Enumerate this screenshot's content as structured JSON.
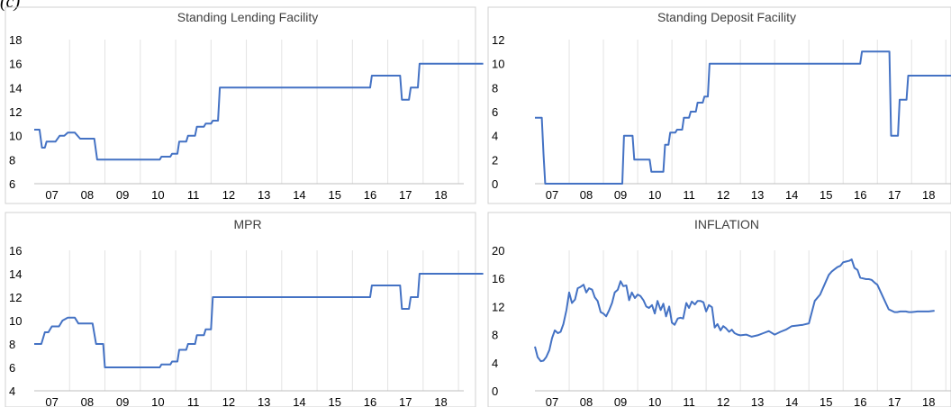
{
  "fragment_text": "(c)",
  "chart_data": [
    {
      "type": "line",
      "title": "Standing Lending Facility",
      "xlabel": "",
      "ylabel": "",
      "ylim": [
        6,
        18
      ],
      "yticks": [
        6,
        8,
        10,
        12,
        14,
        16,
        18
      ],
      "xtick_labels": [
        "07",
        "08",
        "09",
        "10",
        "11",
        "12",
        "13",
        "14",
        "15",
        "16",
        "17",
        "18"
      ],
      "grid": "vertical",
      "color": "#4472c4",
      "series": [
        {
          "x": [
            7.0,
            7.15,
            7.22,
            7.3,
            7.35,
            7.5,
            7.6,
            7.72,
            7.85,
            7.95,
            8.0,
            8.15,
            8.3,
            8.45,
            8.6,
            8.7,
            8.78,
            9.55,
            9.6,
            10.55,
            10.6,
            10.85,
            10.9,
            11.05,
            11.1,
            11.3,
            11.35,
            11.55,
            11.6,
            11.8,
            11.85,
            12.0,
            12.05,
            12.2,
            12.25,
            12.4,
            12.45,
            12.5,
            16.5,
            16.55,
            17.2,
            17.25,
            17.35,
            17.4,
            17.6,
            17.65,
            17.85,
            17.9,
            19.7
          ],
          "y": [
            10.5,
            10.5,
            9.0,
            9.0,
            9.5,
            9.5,
            9.5,
            10.0,
            10.0,
            10.25,
            10.25,
            10.25,
            9.75,
            9.75,
            9.75,
            9.75,
            8.0,
            8.0,
            8.0,
            8.0,
            8.25,
            8.25,
            8.5,
            8.5,
            9.5,
            9.5,
            10.0,
            10.0,
            10.75,
            10.75,
            11.0,
            11.0,
            11.25,
            11.25,
            14.0,
            14.0,
            14.0,
            14.0,
            14.0,
            15.0,
            15.0,
            15.0,
            15.0,
            13.0,
            13.0,
            14.0,
            14.0,
            16.0,
            16.0
          ]
        }
      ]
    },
    {
      "type": "line",
      "title": "Standing Deposit Facility",
      "xlabel": "",
      "ylabel": "",
      "ylim": [
        0,
        12
      ],
      "yticks": [
        0,
        2,
        4,
        6,
        8,
        10,
        12
      ],
      "xtick_labels": [
        "07",
        "08",
        "09",
        "10",
        "11",
        "12",
        "13",
        "14",
        "15",
        "16",
        "17",
        "18"
      ],
      "grid": "vertical",
      "color": "#4472c4",
      "series": [
        {
          "x": [
            7.0,
            7.2,
            7.25,
            7.3,
            9.55,
            9.6,
            9.85,
            9.9,
            10.1,
            10.15,
            10.35,
            10.4,
            10.75,
            10.8,
            10.9,
            10.95,
            11.1,
            11.15,
            11.3,
            11.35,
            11.5,
            11.55,
            11.7,
            11.75,
            11.9,
            11.95,
            12.05,
            12.1,
            12.25,
            12.3,
            12.5,
            16.5,
            16.55,
            17.35,
            17.4,
            17.6,
            17.65,
            17.85,
            17.9,
            18.2,
            18.25,
            19.7
          ],
          "y": [
            5.5,
            5.5,
            2.5,
            0.0,
            0.0,
            4.0,
            4.0,
            2.0,
            2.0,
            2.0,
            2.0,
            1.0,
            1.0,
            3.25,
            3.25,
            4.25,
            4.25,
            4.5,
            4.5,
            5.5,
            5.5,
            6.0,
            6.0,
            6.75,
            6.75,
            7.25,
            7.25,
            10.0,
            10.0,
            10.0,
            10.0,
            10.0,
            11.0,
            11.0,
            4.0,
            4.0,
            7.0,
            7.0,
            9.0,
            9.0,
            9.0,
            9.0
          ]
        }
      ]
    },
    {
      "type": "line",
      "title": "MPR",
      "xlabel": "",
      "ylabel": "",
      "ylim": [
        4,
        16
      ],
      "yticks": [
        4,
        6,
        8,
        10,
        12,
        14,
        16
      ],
      "xtick_labels": [
        "07",
        "08",
        "09",
        "10",
        "11",
        "12",
        "13",
        "14",
        "15",
        "16",
        "17",
        "18"
      ],
      "grid": "vertical",
      "color": "#4472c4",
      "series": [
        {
          "x": [
            7.0,
            7.2,
            7.3,
            7.4,
            7.5,
            7.7,
            7.8,
            7.95,
            8.15,
            8.25,
            8.65,
            8.75,
            8.95,
            9.0,
            10.55,
            10.6,
            10.85,
            10.9,
            11.05,
            11.1,
            11.3,
            11.35,
            11.55,
            11.6,
            11.8,
            11.85,
            12.0,
            12.05,
            12.2,
            12.25,
            12.5,
            16.5,
            16.55,
            17.35,
            17.4,
            17.6,
            17.65,
            17.85,
            17.9,
            19.7
          ],
          "y": [
            8.0,
            8.0,
            9.0,
            9.0,
            9.5,
            9.5,
            10.0,
            10.25,
            10.25,
            9.75,
            9.75,
            8.0,
            8.0,
            6.0,
            6.0,
            6.25,
            6.25,
            6.5,
            6.5,
            7.5,
            7.5,
            8.0,
            8.0,
            8.75,
            8.75,
            9.25,
            9.25,
            12.0,
            12.0,
            12.0,
            12.0,
            12.0,
            13.0,
            13.0,
            11.0,
            11.0,
            12.0,
            12.0,
            14.0,
            14.0
          ]
        }
      ]
    },
    {
      "type": "line",
      "title": "INFLATION",
      "xlabel": "",
      "ylabel": "",
      "ylim": [
        0,
        20
      ],
      "yticks": [
        0,
        4,
        8,
        12,
        16,
        20
      ],
      "xtick_labels": [
        "07",
        "08",
        "09",
        "10",
        "11",
        "12",
        "13",
        "14",
        "15",
        "16",
        "17",
        "18"
      ],
      "grid": "vertical",
      "color": "#4472c4",
      "series": [
        {
          "x": [
            7.0,
            7.08,
            7.17,
            7.25,
            7.33,
            7.42,
            7.5,
            7.58,
            7.67,
            7.75,
            7.83,
            7.92,
            8.0,
            8.08,
            8.17,
            8.25,
            8.33,
            8.42,
            8.5,
            8.58,
            8.67,
            8.75,
            8.83,
            8.92,
            9.0,
            9.08,
            9.17,
            9.25,
            9.33,
            9.42,
            9.5,
            9.58,
            9.67,
            9.75,
            9.83,
            9.92,
            10.0,
            10.08,
            10.17,
            10.25,
            10.33,
            10.42,
            10.5,
            10.58,
            10.67,
            10.75,
            10.83,
            10.92,
            11.0,
            11.08,
            11.17,
            11.25,
            11.33,
            11.42,
            11.5,
            11.58,
            11.67,
            11.75,
            11.83,
            11.92,
            12.0,
            12.08,
            12.17,
            12.25,
            12.33,
            12.42,
            12.5,
            12.58,
            12.67,
            12.75,
            12.83,
            12.92,
            13.0,
            13.17,
            13.33,
            13.5,
            13.67,
            13.83,
            14.0,
            14.17,
            14.33,
            14.5,
            14.67,
            14.83,
            15.0,
            15.17,
            15.33,
            15.5,
            15.58,
            15.67,
            15.75,
            15.83,
            15.92,
            16.0,
            16.08,
            16.17,
            16.25,
            16.33,
            16.42,
            16.5,
            16.58,
            16.67,
            16.75,
            16.83,
            16.92,
            17.0,
            17.17,
            17.33,
            17.5,
            17.58,
            17.67,
            17.75,
            17.83,
            17.92,
            18.0,
            18.17,
            18.33,
            18.5,
            18.67
          ],
          "y": [
            6.3,
            4.8,
            4.2,
            4.3,
            4.8,
            5.8,
            7.5,
            8.6,
            8.2,
            8.4,
            9.5,
            11.5,
            14.0,
            12.5,
            13.0,
            14.6,
            14.8,
            15.1,
            14.0,
            14.6,
            14.4,
            13.3,
            12.8,
            11.2,
            11.0,
            10.6,
            11.5,
            12.5,
            14.0,
            14.4,
            15.6,
            14.9,
            15.0,
            12.9,
            14.0,
            13.2,
            13.7,
            13.5,
            12.9,
            12.0,
            11.8,
            12.2,
            11.0,
            12.8,
            11.5,
            12.4,
            10.6,
            12.0,
            9.7,
            9.4,
            10.3,
            10.4,
            10.3,
            12.5,
            11.8,
            12.7,
            12.3,
            12.8,
            12.8,
            12.6,
            11.3,
            12.2,
            11.9,
            9.0,
            9.5,
            8.6,
            9.2,
            8.9,
            8.4,
            8.7,
            8.2,
            8.0,
            7.9,
            8.0,
            7.7,
            7.9,
            8.2,
            8.5,
            8.0,
            8.4,
            8.7,
            9.2,
            9.3,
            9.4,
            9.6,
            12.8,
            13.7,
            15.6,
            16.5,
            17.0,
            17.3,
            17.6,
            17.8,
            18.3,
            18.4,
            18.5,
            18.7,
            17.5,
            17.2,
            16.1,
            16.0,
            15.9,
            15.9,
            15.8,
            15.4,
            15.1,
            13.3,
            11.6,
            11.2,
            11.2,
            11.3,
            11.3,
            11.3,
            11.2,
            11.2,
            11.3,
            11.3,
            11.3,
            11.4
          ]
        }
      ]
    }
  ]
}
